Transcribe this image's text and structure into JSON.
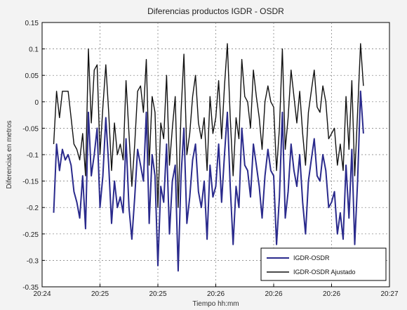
{
  "chart_data": {
    "type": "line",
    "title": "Diferencias productos IGDR - OSDR",
    "xlabel": "Tiempo hh:mm",
    "ylabel": "Diferencias en metros",
    "xlim": [
      0,
      6
    ],
    "ylim": [
      -0.35,
      0.15
    ],
    "x_tick_labels": [
      "20:24",
      "20:25",
      "20:25",
      "20:26",
      "20:26",
      "20:26",
      "20:27"
    ],
    "y_ticks": [
      0.15,
      0.1,
      0.05,
      0,
      -0.05,
      -0.1,
      -0.15,
      -0.2,
      -0.25,
      -0.3,
      -0.35
    ],
    "y_tick_labels": [
      "0.15",
      "0.1",
      "0.05",
      "0",
      "-0.05",
      "-0.1",
      "-0.15",
      "-0.2",
      "-0.25",
      "-0.3",
      "-0.35"
    ],
    "grid": true,
    "legend_position": "bottom-right",
    "x": [
      0.2,
      0.25,
      0.3,
      0.35,
      0.4,
      0.45,
      0.5,
      0.55,
      0.6,
      0.65,
      0.7,
      0.75,
      0.8,
      0.85,
      0.9,
      0.95,
      1.0,
      1.05,
      1.1,
      1.15,
      1.2,
      1.25,
      1.3,
      1.35,
      1.4,
      1.45,
      1.5,
      1.55,
      1.6,
      1.65,
      1.7,
      1.75,
      1.8,
      1.85,
      1.9,
      1.95,
      2.0,
      2.05,
      2.1,
      2.15,
      2.2,
      2.25,
      2.3,
      2.35,
      2.4,
      2.45,
      2.5,
      2.55,
      2.6,
      2.65,
      2.7,
      2.75,
      2.8,
      2.85,
      2.9,
      2.95,
      3.0,
      3.05,
      3.1,
      3.15,
      3.2,
      3.25,
      3.3,
      3.35,
      3.4,
      3.45,
      3.5,
      3.55,
      3.6,
      3.65,
      3.7,
      3.75,
      3.8,
      3.85,
      3.9,
      3.95,
      4.0,
      4.05,
      4.1,
      4.15,
      4.2,
      4.25,
      4.3,
      4.35,
      4.4,
      4.45,
      4.5,
      4.55,
      4.6,
      4.65,
      4.7,
      4.75,
      4.8,
      4.85,
      4.9,
      4.95,
      5.0,
      5.05,
      5.1,
      5.15,
      5.2,
      5.25,
      5.3,
      5.35,
      5.4,
      5.45,
      5.5,
      5.55
    ],
    "series": [
      {
        "name": "IGDR-OSDR",
        "color": "#2a2a8c",
        "values": [
          -0.21,
          -0.08,
          -0.13,
          -0.09,
          -0.11,
          -0.1,
          -0.12,
          -0.17,
          -0.19,
          -0.22,
          -0.14,
          -0.24,
          -0.02,
          -0.14,
          -0.1,
          -0.05,
          -0.2,
          -0.14,
          -0.03,
          -0.12,
          -0.23,
          -0.15,
          -0.2,
          -0.18,
          -0.21,
          -0.07,
          -0.2,
          -0.26,
          -0.18,
          -0.09,
          -0.12,
          -0.15,
          -0.02,
          -0.23,
          -0.1,
          -0.14,
          -0.31,
          -0.16,
          -0.19,
          -0.08,
          -0.25,
          -0.15,
          -0.12,
          -0.32,
          -0.14,
          -0.05,
          -0.23,
          -0.18,
          -0.11,
          -0.08,
          -0.17,
          -0.2,
          -0.15,
          -0.26,
          -0.12,
          -0.18,
          -0.16,
          -0.08,
          -0.19,
          -0.1,
          -0.02,
          -0.16,
          -0.27,
          -0.16,
          -0.2,
          -0.05,
          -0.12,
          -0.13,
          -0.18,
          -0.08,
          -0.12,
          -0.16,
          -0.22,
          -0.14,
          -0.09,
          -0.13,
          -0.14,
          -0.27,
          -0.18,
          -0.02,
          -0.22,
          -0.17,
          -0.08,
          -0.13,
          -0.16,
          -0.1,
          -0.19,
          -0.25,
          -0.15,
          -0.11,
          -0.07,
          -0.14,
          -0.15,
          -0.1,
          -0.13,
          -0.2,
          -0.19,
          -0.17,
          -0.25,
          -0.21,
          -0.26,
          -0.12,
          -0.22,
          -0.09,
          -0.27,
          -0.15,
          0.02,
          -0.06
        ]
      },
      {
        "name": "IGDR-OSDR Ajustado",
        "color": "#111111",
        "values": [
          -0.08,
          0.02,
          -0.03,
          0.02,
          0.02,
          0.02,
          -0.03,
          -0.08,
          -0.09,
          -0.11,
          -0.06,
          -0.14,
          0.1,
          -0.04,
          0.06,
          0.07,
          -0.1,
          -0.01,
          0.07,
          -0.02,
          -0.13,
          -0.04,
          -0.1,
          -0.08,
          -0.11,
          0.04,
          -0.06,
          -0.16,
          -0.08,
          0.02,
          0.03,
          -0.02,
          0.08,
          -0.12,
          0.01,
          -0.02,
          -0.2,
          -0.04,
          -0.07,
          0.05,
          -0.12,
          -0.05,
          0.01,
          -0.2,
          -0.02,
          0.09,
          -0.1,
          -0.06,
          0.01,
          0.05,
          -0.04,
          -0.07,
          -0.03,
          -0.13,
          0.01,
          -0.06,
          -0.03,
          0.04,
          -0.07,
          0.03,
          0.11,
          -0.03,
          -0.14,
          -0.03,
          -0.07,
          0.08,
          0.01,
          0.0,
          -0.05,
          0.06,
          0.01,
          -0.03,
          -0.09,
          0.0,
          0.03,
          0.0,
          -0.01,
          -0.13,
          -0.05,
          0.1,
          -0.09,
          -0.03,
          0.06,
          0.01,
          -0.04,
          0.02,
          -0.06,
          -0.12,
          -0.02,
          0.02,
          0.06,
          -0.01,
          -0.02,
          0.03,
          0.0,
          -0.07,
          -0.06,
          -0.05,
          -0.12,
          -0.08,
          -0.13,
          0.01,
          -0.09,
          0.04,
          -0.14,
          -0.02,
          0.11,
          0.03
        ]
      }
    ]
  }
}
